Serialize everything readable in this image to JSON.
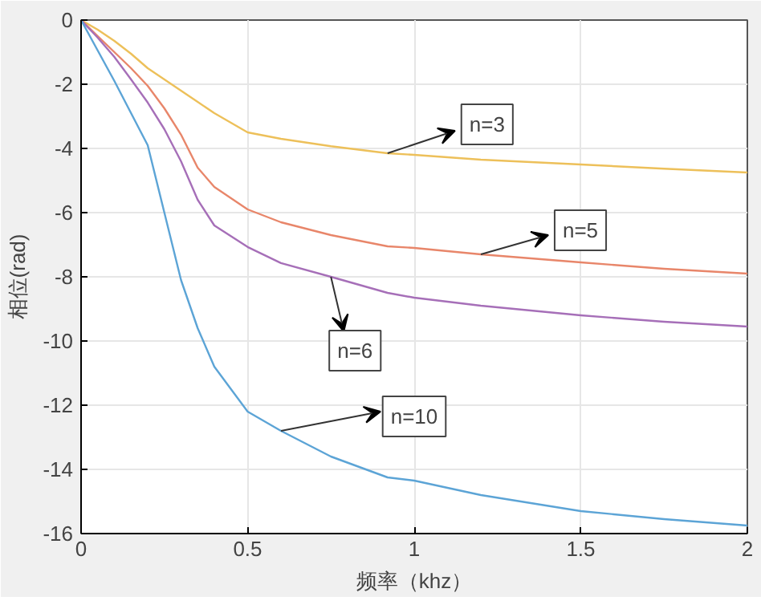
{
  "chart_data": {
    "type": "line",
    "xlabel": "频率（khz）",
    "ylabel": "相位(rad)",
    "x": [
      0,
      0.05,
      0.1,
      0.15,
      0.2,
      0.25,
      0.3,
      0.35,
      0.4,
      0.5,
      0.6,
      0.75,
      0.92,
      1.0,
      1.2,
      1.5,
      1.75,
      2.0
    ],
    "series": [
      {
        "name": "n=3",
        "color": "#edc05a",
        "values": [
          0,
          -0.3,
          -0.65,
          -1.05,
          -1.5,
          -1.85,
          -2.2,
          -2.55,
          -2.9,
          -3.5,
          -3.7,
          -3.93,
          -4.15,
          -4.2,
          -4.35,
          -4.5,
          -4.63,
          -4.75
        ]
      },
      {
        "name": "n=5",
        "color": "#e8866a",
        "values": [
          0,
          -0.5,
          -1.0,
          -1.5,
          -2.05,
          -2.75,
          -3.57,
          -4.6,
          -5.2,
          -5.9,
          -6.3,
          -6.7,
          -7.05,
          -7.1,
          -7.3,
          -7.55,
          -7.75,
          -7.9
        ]
      },
      {
        "name": "n=6",
        "color": "#a66fb8",
        "values": [
          0,
          -0.55,
          -1.15,
          -1.85,
          -2.57,
          -3.4,
          -4.4,
          -5.6,
          -6.4,
          -7.07,
          -7.57,
          -8.0,
          -8.5,
          -8.65,
          -8.9,
          -9.2,
          -9.4,
          -9.55
        ]
      },
      {
        "name": "n=10",
        "color": "#5ca4d6",
        "values": [
          0,
          -0.95,
          -1.9,
          -2.9,
          -3.9,
          -6.0,
          -8.1,
          -9.6,
          -10.8,
          -12.2,
          -12.8,
          -13.6,
          -14.25,
          -14.35,
          -14.8,
          -15.3,
          -15.55,
          -15.75
        ]
      }
    ],
    "xlim": [
      0,
      2
    ],
    "ylim": [
      -16,
      0
    ],
    "xticks": [
      0,
      0.5,
      1,
      1.5,
      2
    ],
    "yticks": [
      -16,
      -14,
      -12,
      -10,
      -8,
      -6,
      -4,
      -2,
      0
    ],
    "grid": true,
    "legend": false,
    "line_style": "solid",
    "marker": "none"
  }
}
